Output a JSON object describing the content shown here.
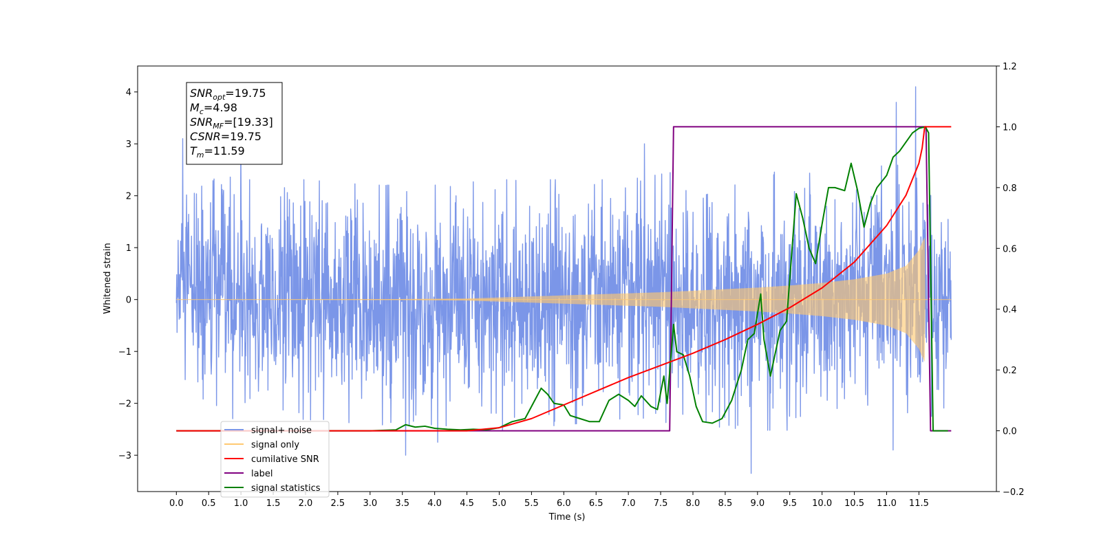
{
  "chart_data": {
    "type": "line",
    "xlabel": "Time (s)",
    "ylabel": "Whitened strain",
    "xlim": [
      -0.6,
      12.7
    ],
    "ylim_left": [
      -3.7,
      4.5
    ],
    "ylim_right": [
      -0.2,
      1.2
    ],
    "x_ticks": [
      "0.0",
      "0.5",
      "1.0",
      "1.5",
      "2.0",
      "2.5",
      "3.0",
      "3.5",
      "4.0",
      "4.5",
      "5.0",
      "5.5",
      "6.0",
      "6.5",
      "7.0",
      "7.5",
      "8.0",
      "8.5",
      "9.0",
      "9.5",
      "10.0",
      "10.5",
      "11.0",
      "11.5"
    ],
    "y_ticks_left": [
      "−3",
      "−2",
      "−1",
      "0",
      "1",
      "2",
      "3",
      "4"
    ],
    "y_ticks_right": [
      "−0.2",
      "0.0",
      "0.2",
      "0.4",
      "0.6",
      "0.8",
      "1.0",
      "1.2"
    ],
    "annotation": {
      "lines": [
        {
          "base": "SNR",
          "sub": "opt",
          "rest": "=19.75"
        },
        {
          "base": "M",
          "sub": "c",
          "rest": "=4.98"
        },
        {
          "base": "SNR",
          "sub": "MF",
          "rest": "=[19.33]"
        },
        {
          "base": "CSNR",
          "sub": "",
          "rest": "=19.75"
        },
        {
          "base": "T",
          "sub": "m",
          "rest": "=11.59"
        }
      ]
    },
    "legend": {
      "placement": "lower-left",
      "entries": [
        {
          "label": "signal+ noise",
          "color": "#7b96e8"
        },
        {
          "label": "signal only",
          "color": "#ffc870"
        },
        {
          "label": "cumilative SNR",
          "color": "#ff0000"
        },
        {
          "label": "label",
          "color": "#800080"
        },
        {
          "label": "signal statistics",
          "color": "#008000"
        }
      ]
    },
    "series": [
      {
        "name": "signal+ noise",
        "axis": "left",
        "color": "#7b96e8",
        "x_range": [
          0.0,
          12.0
        ],
        "envelope_upper_approx": [
          [
            0.0,
            2.1
          ],
          [
            0.3,
            2.4
          ],
          [
            1.0,
            2.2
          ],
          [
            2.0,
            2.2
          ],
          [
            3.0,
            2.1
          ],
          [
            4.0,
            2.1
          ],
          [
            5.0,
            2.2
          ],
          [
            6.0,
            2.2
          ],
          [
            7.0,
            2.2
          ],
          [
            8.0,
            2.4
          ],
          [
            9.0,
            2.4
          ],
          [
            10.0,
            2.3
          ],
          [
            11.0,
            2.5
          ],
          [
            11.5,
            2.4
          ],
          [
            12.0,
            1.4
          ]
        ],
        "envelope_lower_approx": [
          [
            0.0,
            -2.1
          ],
          [
            1.0,
            -2.2
          ],
          [
            2.0,
            -2.2
          ],
          [
            3.0,
            -2.3
          ],
          [
            4.0,
            -2.3
          ],
          [
            5.0,
            -2.4
          ],
          [
            6.0,
            -2.3
          ],
          [
            7.0,
            -2.2
          ],
          [
            8.0,
            -2.3
          ],
          [
            9.0,
            -2.4
          ],
          [
            10.0,
            -2.4
          ],
          [
            11.0,
            -2.3
          ],
          [
            11.5,
            -2.3
          ],
          [
            12.0,
            -1.9
          ]
        ],
        "notable_spikes": [
          [
            0.1,
            3.1
          ],
          [
            1.0,
            3.0
          ],
          [
            3.55,
            -3.0
          ],
          [
            4.05,
            -2.75
          ],
          [
            7.25,
            3.0
          ],
          [
            8.9,
            -3.35
          ],
          [
            11.1,
            -2.9
          ],
          [
            11.15,
            3.8
          ],
          [
            11.45,
            4.1
          ]
        ]
      },
      {
        "name": "signal only",
        "axis": "left",
        "color": "#ffc870",
        "envelope_amplitude": [
          [
            0.0,
            0.0
          ],
          [
            2.0,
            0.005
          ],
          [
            3.5,
            0.01
          ],
          [
            4.5,
            0.02
          ],
          [
            5.0,
            0.04
          ],
          [
            5.5,
            0.06
          ],
          [
            6.0,
            0.08
          ],
          [
            6.5,
            0.1
          ],
          [
            7.0,
            0.12
          ],
          [
            7.5,
            0.14
          ],
          [
            8.0,
            0.17
          ],
          [
            8.5,
            0.2
          ],
          [
            9.0,
            0.23
          ],
          [
            9.5,
            0.27
          ],
          [
            10.0,
            0.32
          ],
          [
            10.5,
            0.39
          ],
          [
            11.0,
            0.5
          ],
          [
            11.3,
            0.65
          ],
          [
            11.5,
            0.95
          ],
          [
            11.55,
            1.1
          ],
          [
            11.59,
            1.2
          ],
          [
            11.6,
            0.0
          ],
          [
            12.0,
            0.0
          ]
        ]
      },
      {
        "name": "cumilative SNR",
        "axis": "right",
        "color": "#ff0000",
        "points": [
          [
            0.0,
            0.0
          ],
          [
            4.5,
            0.0
          ],
          [
            5.0,
            0.01
          ],
          [
            5.5,
            0.04
          ],
          [
            6.0,
            0.085
          ],
          [
            6.5,
            0.13
          ],
          [
            7.0,
            0.175
          ],
          [
            7.5,
            0.215
          ],
          [
            8.0,
            0.255
          ],
          [
            8.5,
            0.3
          ],
          [
            9.0,
            0.35
          ],
          [
            9.5,
            0.405
          ],
          [
            10.0,
            0.47
          ],
          [
            10.5,
            0.555
          ],
          [
            11.0,
            0.675
          ],
          [
            11.3,
            0.775
          ],
          [
            11.5,
            0.88
          ],
          [
            11.55,
            0.93
          ],
          [
            11.59,
            1.0
          ],
          [
            12.0,
            1.0
          ]
        ]
      },
      {
        "name": "label",
        "axis": "right",
        "color": "#800080",
        "points": [
          [
            0.0,
            0.0
          ],
          [
            7.64,
            0.0
          ],
          [
            7.7,
            1.0
          ],
          [
            11.61,
            1.0
          ],
          [
            11.68,
            0.0
          ],
          [
            12.0,
            0.0
          ]
        ]
      },
      {
        "name": "signal statistics",
        "axis": "right",
        "color": "#008000",
        "points": [
          [
            0.0,
            0.0
          ],
          [
            3.0,
            0.0
          ],
          [
            3.4,
            0.003
          ],
          [
            3.55,
            0.02
          ],
          [
            3.7,
            0.012
          ],
          [
            3.85,
            0.015
          ],
          [
            4.0,
            0.008
          ],
          [
            4.2,
            0.005
          ],
          [
            4.4,
            0.003
          ],
          [
            4.6,
            0.005
          ],
          [
            4.8,
            0.003
          ],
          [
            5.0,
            0.01
          ],
          [
            5.2,
            0.03
          ],
          [
            5.4,
            0.04
          ],
          [
            5.55,
            0.1
          ],
          [
            5.65,
            0.14
          ],
          [
            5.75,
            0.12
          ],
          [
            5.85,
            0.09
          ],
          [
            6.0,
            0.085
          ],
          [
            6.1,
            0.05
          ],
          [
            6.25,
            0.04
          ],
          [
            6.4,
            0.03
          ],
          [
            6.55,
            0.03
          ],
          [
            6.7,
            0.1
          ],
          [
            6.85,
            0.12
          ],
          [
            7.0,
            0.1
          ],
          [
            7.1,
            0.08
          ],
          [
            7.2,
            0.115
          ],
          [
            7.35,
            0.08
          ],
          [
            7.45,
            0.07
          ],
          [
            7.55,
            0.18
          ],
          [
            7.6,
            0.09
          ],
          [
            7.7,
            0.35
          ],
          [
            7.75,
            0.26
          ],
          [
            7.85,
            0.25
          ],
          [
            7.95,
            0.18
          ],
          [
            8.05,
            0.08
          ],
          [
            8.15,
            0.03
          ],
          [
            8.3,
            0.025
          ],
          [
            8.45,
            0.04
          ],
          [
            8.6,
            0.1
          ],
          [
            8.75,
            0.2
          ],
          [
            8.85,
            0.3
          ],
          [
            8.95,
            0.32
          ],
          [
            9.05,
            0.45
          ],
          [
            9.1,
            0.3
          ],
          [
            9.2,
            0.18
          ],
          [
            9.35,
            0.33
          ],
          [
            9.45,
            0.36
          ],
          [
            9.6,
            0.78
          ],
          [
            9.7,
            0.7
          ],
          [
            9.8,
            0.6
          ],
          [
            9.9,
            0.55
          ],
          [
            10.0,
            0.68
          ],
          [
            10.1,
            0.8
          ],
          [
            10.2,
            0.8
          ],
          [
            10.35,
            0.79
          ],
          [
            10.45,
            0.88
          ],
          [
            10.55,
            0.79
          ],
          [
            10.65,
            0.67
          ],
          [
            10.75,
            0.75
          ],
          [
            10.85,
            0.8
          ],
          [
            11.0,
            0.84
          ],
          [
            11.1,
            0.9
          ],
          [
            11.2,
            0.92
          ],
          [
            11.3,
            0.95
          ],
          [
            11.4,
            0.98
          ],
          [
            11.5,
            0.995
          ],
          [
            11.6,
            1.0
          ],
          [
            11.65,
            0.98
          ],
          [
            11.72,
            0.0
          ],
          [
            11.95,
            0.0
          ]
        ]
      }
    ]
  }
}
